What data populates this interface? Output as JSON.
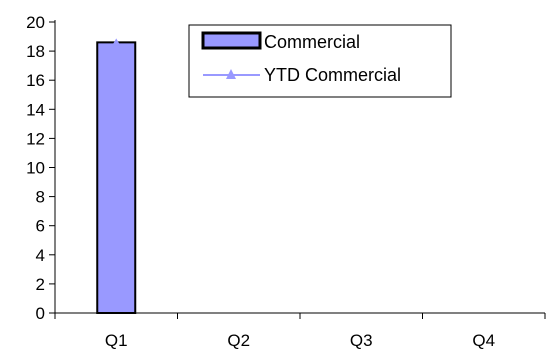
{
  "chart_data": {
    "type": "bar",
    "title": "",
    "xlabel": "",
    "ylabel": "",
    "categories": [
      "Q1",
      "Q2",
      "Q3",
      "Q4"
    ],
    "ylim": [
      0,
      20
    ],
    "yticks": [
      0,
      2,
      4,
      6,
      8,
      10,
      12,
      14,
      16,
      18,
      20
    ],
    "grid": false,
    "legend_position": "top-right",
    "series": [
      {
        "name": "Commercial",
        "kind": "bar",
        "values": [
          18.6,
          null,
          null,
          null
        ],
        "color": "#9999ff",
        "edge_color": "#000000"
      },
      {
        "name": "YTD Commercial",
        "kind": "line",
        "marker": "triangle",
        "values": [
          18.6,
          null,
          null,
          null
        ],
        "color": "#9999ff"
      }
    ]
  }
}
